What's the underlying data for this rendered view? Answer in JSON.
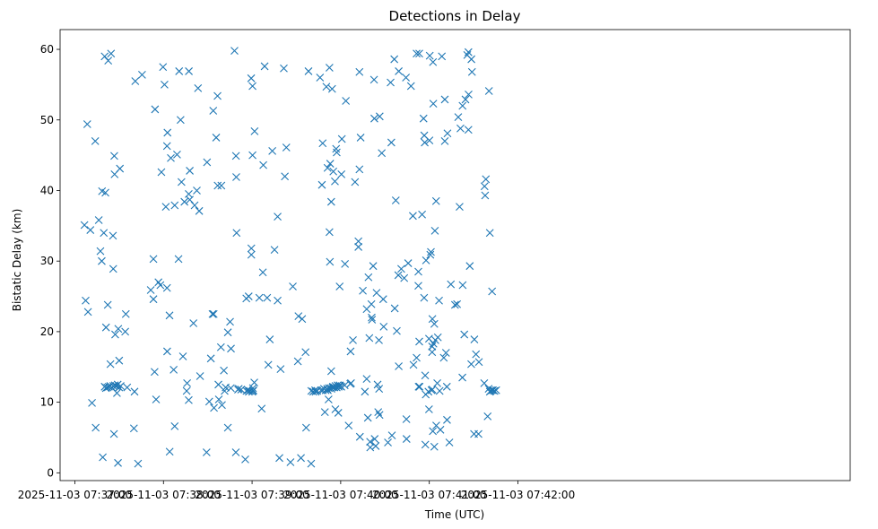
{
  "chart_data": {
    "type": "scatter",
    "title": "Detections in Delay",
    "xlabel": "Time (UTC)",
    "ylabel": "Bistatic Delay (km)",
    "marker": "x",
    "color": "#1f77b4",
    "grid": false,
    "xlim_seconds": [
      -10,
      525
    ],
    "ylim": [
      -1.1,
      62.8
    ],
    "x_ticks": [
      {
        "seconds": 0,
        "label": "2025-11-03 07:37:00"
      },
      {
        "seconds": 60,
        "label": "2025-11-03 07:38:00"
      },
      {
        "seconds": 120,
        "label": "2025-11-03 07:39:00"
      },
      {
        "seconds": 180,
        "label": "2025-11-03 07:40:00"
      },
      {
        "seconds": 240,
        "label": "2025-11-03 07:41:00"
      },
      {
        "seconds": 300,
        "label": "2025-11-03 07:42:00"
      }
    ],
    "y_ticks": [
      0,
      10,
      20,
      30,
      40,
      50,
      60
    ],
    "x_unit": "seconds after 2025-11-03 07:37:00",
    "points": [
      [
        6.5,
        35.1
      ],
      [
        7.3,
        24.4
      ],
      [
        8.9,
        22.8
      ],
      [
        8.4,
        49.4
      ],
      [
        10.5,
        34.4
      ],
      [
        11.6,
        9.9
      ],
      [
        13.8,
        47.0
      ],
      [
        14.1,
        6.4
      ],
      [
        16.2,
        35.8
      ],
      [
        17.3,
        31.4
      ],
      [
        18.4,
        39.9
      ],
      [
        18.2,
        30.0
      ],
      [
        18.9,
        2.2
      ],
      [
        19.6,
        34.0
      ],
      [
        20.7,
        39.7
      ],
      [
        20.2,
        59.0
      ],
      [
        21.1,
        20.6
      ],
      [
        22.3,
        23.8
      ],
      [
        22.6,
        58.4
      ],
      [
        24.1,
        15.4
      ],
      [
        24.5,
        59.4
      ],
      [
        25.8,
        33.6
      ],
      [
        26.0,
        28.9
      ],
      [
        26.5,
        5.5
      ],
      [
        26.7,
        44.9
      ],
      [
        26.9,
        42.3
      ],
      [
        27.3,
        19.6
      ],
      [
        28.5,
        11.3
      ],
      [
        29.4,
        20.4
      ],
      [
        29.2,
        1.4
      ],
      [
        30.0,
        15.9
      ],
      [
        30.5,
        43.1
      ],
      [
        34.1,
        20.0
      ],
      [
        34.5,
        22.5
      ],
      [
        35.4,
        12.1
      ],
      [
        40.4,
        11.5
      ],
      [
        40.0,
        6.3
      ],
      [
        42.8,
        1.3
      ],
      [
        45.5,
        56.4
      ],
      [
        40.9,
        55.5
      ],
      [
        51.4,
        25.9
      ],
      [
        53.2,
        30.3
      ],
      [
        53.2,
        24.6
      ],
      [
        54.0,
        14.3
      ],
      [
        54.3,
        51.5
      ],
      [
        55.0,
        10.4
      ],
      [
        56.6,
        27.0
      ],
      [
        57.9,
        26.6
      ],
      [
        58.6,
        42.6
      ],
      [
        59.7,
        57.5
      ],
      [
        60.7,
        55.0
      ],
      [
        61.6,
        37.7
      ],
      [
        62.4,
        46.3
      ],
      [
        62.4,
        26.2
      ],
      [
        62.7,
        48.2
      ],
      [
        62.5,
        17.2
      ],
      [
        64.1,
        22.3
      ],
      [
        64.2,
        3.0
      ],
      [
        65.0,
        44.6
      ],
      [
        66.9,
        14.6
      ],
      [
        67.6,
        37.9
      ],
      [
        67.6,
        6.6
      ],
      [
        69.2,
        45.1
      ],
      [
        70.2,
        30.3
      ],
      [
        70.6,
        56.9
      ],
      [
        71.6,
        50.0
      ],
      [
        72.2,
        41.2
      ],
      [
        73.2,
        16.5
      ],
      [
        74.2,
        38.4
      ],
      [
        75.7,
        11.6
      ],
      [
        76.0,
        12.7
      ],
      [
        77.1,
        39.5
      ],
      [
        77.2,
        56.9
      ],
      [
        77.1,
        10.3
      ],
      [
        77.8,
        42.8
      ],
      [
        77.8,
        38.7
      ],
      [
        80.3,
        21.2
      ],
      [
        81.1,
        37.9
      ],
      [
        82.6,
        40.0
      ],
      [
        83.4,
        54.5
      ],
      [
        84.2,
        37.1
      ],
      [
        84.8,
        13.7
      ],
      [
        89.2,
        2.9
      ],
      [
        89.5,
        44.0
      ],
      [
        91.0,
        10.1
      ],
      [
        92.1,
        16.2
      ],
      [
        93.2,
        22.5
      ],
      [
        93.7,
        51.3
      ],
      [
        94.0,
        22.5
      ],
      [
        94.2,
        9.2
      ],
      [
        95.7,
        47.5
      ],
      [
        96.6,
        53.4
      ],
      [
        96.7,
        40.7
      ],
      [
        97.2,
        12.5
      ],
      [
        97.5,
        10.4
      ],
      [
        98.9,
        17.8
      ],
      [
        99.2,
        40.7
      ],
      [
        99.6,
        9.6
      ],
      [
        100.9,
        14.5
      ],
      [
        101.4,
        11.6
      ],
      [
        102.1,
        12.1
      ],
      [
        103.6,
        6.4
      ],
      [
        103.6,
        19.9
      ],
      [
        105.1,
        21.4
      ],
      [
        105.6,
        12.0
      ],
      [
        105.7,
        17.6
      ],
      [
        108.1,
        59.8
      ],
      [
        109.1,
        44.9
      ],
      [
        109.0,
        2.9
      ],
      [
        109.3,
        41.9
      ],
      [
        109.5,
        34.0
      ],
      [
        110.5,
        11.8
      ],
      [
        111.0,
        11.9
      ],
      [
        112.6,
        11.8
      ],
      [
        115.4,
        1.9
      ],
      [
        116.1,
        24.7
      ],
      [
        116.2,
        11.6
      ],
      [
        117.3,
        11.7
      ],
      [
        117.7,
        25.0
      ],
      [
        117.8,
        11.5
      ],
      [
        118.5,
        11.6
      ],
      [
        119.4,
        55.9
      ],
      [
        119.5,
        31.8
      ],
      [
        119.5,
        30.9
      ],
      [
        120.3,
        45.0
      ],
      [
        120.1,
        11.5
      ],
      [
        120.3,
        54.8
      ],
      [
        120.7,
        11.6
      ],
      [
        120.6,
        12.0
      ],
      [
        120.8,
        11.7
      ],
      [
        121.5,
        12.8
      ],
      [
        121.7,
        48.4
      ],
      [
        124.9,
        24.8
      ],
      [
        126.5,
        9.1
      ],
      [
        127.3,
        28.4
      ],
      [
        127.6,
        43.6
      ],
      [
        128.5,
        57.6
      ],
      [
        130.2,
        24.8
      ],
      [
        131.0,
        15.3
      ],
      [
        132.0,
        18.9
      ],
      [
        133.7,
        45.6
      ],
      [
        135.2,
        31.6
      ],
      [
        137.3,
        36.3
      ],
      [
        137.3,
        24.4
      ],
      [
        138.5,
        2.1
      ],
      [
        139.3,
        14.7
      ],
      [
        141.5,
        57.3
      ],
      [
        142.2,
        42.0
      ],
      [
        143.2,
        46.1
      ],
      [
        146.0,
        1.5
      ],
      [
        147.6,
        26.4
      ],
      [
        151.0,
        15.8
      ],
      [
        151.4,
        22.2
      ],
      [
        153.1,
        2.1
      ],
      [
        153.9,
        21.8
      ],
      [
        156.2,
        17.1
      ],
      [
        156.6,
        6.4
      ],
      [
        158.2,
        56.9
      ],
      [
        160.1,
        11.6
      ],
      [
        160.0,
        1.3
      ],
      [
        161.4,
        11.5
      ],
      [
        162.7,
        11.7
      ],
      [
        163.0,
        11.5
      ],
      [
        164.1,
        11.6
      ],
      [
        166.0,
        56.0
      ],
      [
        166.7,
        11.7
      ],
      [
        167.3,
        40.8
      ],
      [
        167.9,
        11.7
      ],
      [
        167.8,
        46.7
      ],
      [
        168.7,
        11.9
      ],
      [
        169.3,
        8.6
      ],
      [
        169.8,
        11.7
      ],
      [
        170.3,
        54.7
      ],
      [
        170.8,
        11.9
      ],
      [
        171.1,
        43.2
      ],
      [
        171.8,
        10.4
      ],
      [
        171.3,
        11.7
      ],
      [
        172.0,
        12.0
      ],
      [
        172.4,
        57.4
      ],
      [
        172.7,
        29.9
      ],
      [
        172.4,
        34.1
      ],
      [
        172.9,
        43.8
      ],
      [
        173.3,
        12.0
      ],
      [
        173.6,
        14.4
      ],
      [
        173.6,
        38.4
      ],
      [
        173.7,
        11.9
      ],
      [
        174.2,
        54.4
      ],
      [
        174.5,
        12.1
      ],
      [
        174.8,
        12.2
      ],
      [
        175.0,
        42.7
      ],
      [
        175.7,
        12.1
      ],
      [
        176.1,
        41.3
      ],
      [
        176.4,
        9.0
      ],
      [
        176.5,
        12.3
      ],
      [
        176.9,
        45.9
      ],
      [
        177.3,
        12.1
      ],
      [
        177.3,
        45.4
      ],
      [
        177.9,
        12.4
      ],
      [
        178.6,
        12.2
      ],
      [
        178.4,
        8.5
      ],
      [
        179.3,
        26.4
      ],
      [
        179.3,
        12.4
      ],
      [
        179.6,
        12.3
      ],
      [
        180.4,
        12.2
      ],
      [
        180.8,
        47.3
      ],
      [
        180.5,
        42.3
      ],
      [
        182.7,
        12.4
      ],
      [
        182.9,
        29.6
      ],
      [
        183.5,
        52.7
      ],
      [
        185.4,
        6.7
      ],
      [
        186.5,
        12.6
      ],
      [
        186.7,
        17.2
      ],
      [
        187.0,
        12.7
      ],
      [
        188.3,
        18.8
      ],
      [
        189.7,
        41.2
      ],
      [
        192.0,
        32.8
      ],
      [
        192.0,
        32.0
      ],
      [
        192.7,
        43.0
      ],
      [
        192.7,
        56.8
      ],
      [
        193.0,
        5.1
      ],
      [
        193.5,
        47.5
      ],
      [
        195.0,
        25.8
      ],
      [
        196.4,
        11.5
      ],
      [
        197.6,
        23.2
      ],
      [
        197.6,
        13.3
      ],
      [
        198.4,
        7.8
      ],
      [
        198.8,
        27.7
      ],
      [
        199.4,
        19.1
      ],
      [
        199.9,
        4.4
      ],
      [
        200.0,
        3.6
      ],
      [
        200.8,
        23.9
      ],
      [
        201.0,
        22.0
      ],
      [
        201.2,
        21.7
      ],
      [
        202.0,
        29.3
      ],
      [
        202.6,
        55.7
      ],
      [
        202.8,
        50.2
      ],
      [
        203.0,
        4.8
      ],
      [
        203.7,
        3.8
      ],
      [
        204.3,
        25.5
      ],
      [
        205.0,
        12.5
      ],
      [
        205.4,
        8.6
      ],
      [
        205.9,
        18.8
      ],
      [
        206.4,
        50.5
      ],
      [
        206.0,
        11.9
      ],
      [
        206.3,
        8.2
      ],
      [
        207.8,
        45.3
      ],
      [
        208.8,
        24.6
      ],
      [
        209.1,
        20.7
      ],
      [
        212.0,
        4.3
      ],
      [
        213.8,
        55.3
      ],
      [
        214.3,
        46.8
      ],
      [
        214.7,
        5.3
      ],
      [
        216.3,
        58.6
      ],
      [
        216.6,
        23.3
      ],
      [
        217.3,
        38.6
      ],
      [
        218.0,
        20.1
      ],
      [
        219.3,
        56.9
      ],
      [
        219.0,
        28.0
      ],
      [
        219.3,
        15.1
      ],
      [
        221.0,
        28.9
      ],
      [
        223.0,
        27.6
      ],
      [
        224.2,
        56.0
      ],
      [
        224.5,
        7.6
      ],
      [
        224.6,
        4.8
      ],
      [
        225.7,
        29.7
      ],
      [
        227.6,
        54.8
      ],
      [
        228.9,
        36.4
      ],
      [
        229.3,
        15.3
      ],
      [
        231.4,
        16.3
      ],
      [
        231.4,
        59.4
      ],
      [
        232.8,
        12.2
      ],
      [
        232.6,
        28.5
      ],
      [
        233.2,
        59.4
      ],
      [
        233.2,
        18.6
      ],
      [
        232.6,
        26.5
      ],
      [
        233.4,
        12.2
      ],
      [
        235.1,
        36.6
      ],
      [
        236.1,
        50.2
      ],
      [
        236.5,
        24.8
      ],
      [
        236.6,
        47.8
      ],
      [
        236.9,
        46.8
      ],
      [
        237.2,
        13.8
      ],
      [
        237.6,
        11.1
      ],
      [
        237.3,
        4.0
      ],
      [
        237.8,
        30.1
      ],
      [
        239.4,
        11.5
      ],
      [
        239.8,
        9.0
      ],
      [
        239.8,
        19.0
      ],
      [
        240.3,
        59.1
      ],
      [
        240.1,
        47.1
      ],
      [
        240.7,
        30.9
      ],
      [
        241.1,
        31.3
      ],
      [
        241.5,
        11.7
      ],
      [
        241.9,
        17.9
      ],
      [
        241.9,
        17.1
      ],
      [
        242.1,
        11.8
      ],
      [
        242.1,
        21.8
      ],
      [
        242.7,
        52.3
      ],
      [
        242.5,
        58.2
      ],
      [
        242.4,
        5.9
      ],
      [
        242.8,
        18.3
      ],
      [
        243.4,
        3.7
      ],
      [
        243.4,
        21.1
      ],
      [
        243.8,
        34.3
      ],
      [
        244.1,
        18.8
      ],
      [
        244.6,
        38.5
      ],
      [
        244.7,
        6.7
      ],
      [
        245.4,
        12.7
      ],
      [
        245.8,
        19.2
      ],
      [
        246.6,
        24.4
      ],
      [
        247.0,
        11.6
      ],
      [
        247.5,
        6.1
      ],
      [
        248.5,
        59.0
      ],
      [
        249.8,
        16.3
      ],
      [
        250.5,
        52.9
      ],
      [
        250.5,
        47.0
      ],
      [
        251.3,
        17.0
      ],
      [
        251.9,
        12.2
      ],
      [
        252.0,
        7.5
      ],
      [
        252.3,
        48.1
      ],
      [
        253.6,
        4.3
      ],
      [
        254.6,
        26.7
      ],
      [
        257.4,
        23.8
      ],
      [
        258.8,
        23.9
      ],
      [
        259.6,
        50.4
      ],
      [
        260.5,
        37.7
      ],
      [
        261.1,
        48.8
      ],
      [
        262.4,
        13.5
      ],
      [
        262.5,
        52.0
      ],
      [
        262.6,
        26.6
      ],
      [
        263.7,
        19.6
      ],
      [
        264.5,
        52.9
      ],
      [
        265.7,
        59.2
      ],
      [
        266.5,
        59.6
      ],
      [
        266.5,
        48.6
      ],
      [
        266.6,
        53.6
      ],
      [
        267.4,
        29.3
      ],
      [
        268.4,
        15.4
      ],
      [
        268.9,
        56.8
      ],
      [
        268.5,
        58.6
      ],
      [
        270.5,
        18.9
      ],
      [
        270.3,
        5.5
      ],
      [
        271.6,
        16.8
      ],
      [
        273.3,
        5.5
      ],
      [
        273.6,
        15.7
      ],
      [
        277.2,
        12.7
      ],
      [
        277.4,
        40.6
      ],
      [
        277.8,
        39.3
      ],
      [
        278.3,
        41.6
      ],
      [
        279.5,
        8.0
      ],
      [
        280.4,
        54.1
      ],
      [
        280.2,
        11.9
      ],
      [
        281.0,
        11.5
      ],
      [
        281.0,
        34.0
      ],
      [
        281.5,
        11.6
      ],
      [
        282.3,
        11.7
      ],
      [
        282.5,
        25.7
      ],
      [
        283.1,
        11.7
      ],
      [
        284.1,
        11.6
      ],
      [
        285.3,
        11.7
      ],
      [
        20.2,
        12.2
      ],
      [
        21.0,
        12.0
      ],
      [
        22.0,
        12.1
      ],
      [
        23.0,
        12.2
      ],
      [
        24.0,
        12.3
      ],
      [
        25.0,
        12.1
      ],
      [
        26.0,
        12.3
      ],
      [
        27.0,
        12.4
      ],
      [
        28.0,
        12.3
      ],
      [
        29.0,
        12.5
      ],
      [
        30.0,
        12.1
      ],
      [
        31.0,
        12.3
      ]
    ]
  }
}
